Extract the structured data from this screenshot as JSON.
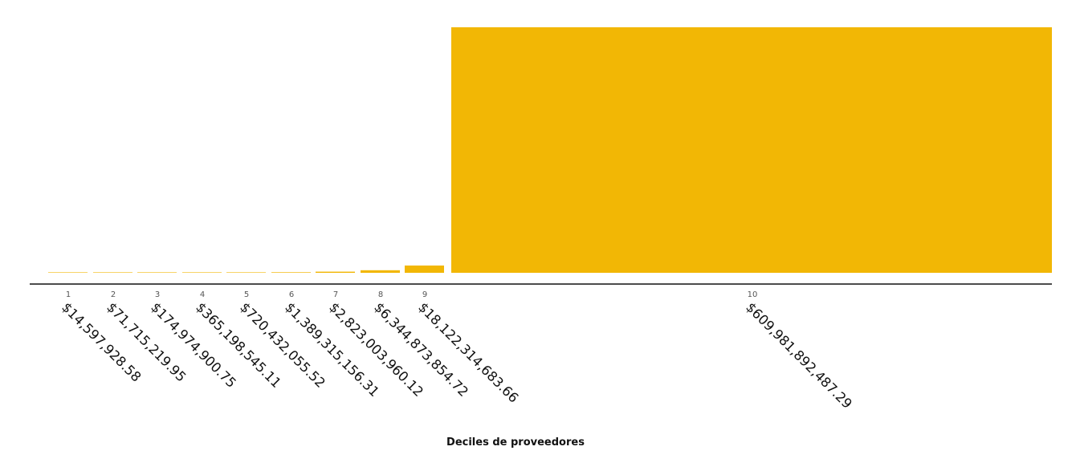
{
  "chart_data": {
    "type": "bar",
    "categories": [
      "1",
      "2",
      "3",
      "4",
      "5",
      "6",
      "7",
      "8",
      "9",
      "10"
    ],
    "values": [
      14597928.58,
      71715219.95,
      174974900.75,
      365198545.11,
      720432055.52,
      1389315156.31,
      2823003960.12,
      6344873854.72,
      18122314683.66,
      609981892487.29
    ],
    "value_labels": [
      "$14,597,928.58",
      "$71,715,219.95",
      "$174,974,900.75",
      "$365,198,545.11",
      "$720,432,055.52",
      "$1,389,315,156.31",
      "$2,823,003,960.12",
      "$6,344,873,854.72",
      "$18,122,314,683.66",
      "$609,981,892,487.29"
    ],
    "xlabel": "Deciles de proveedores",
    "ylabel": "",
    "grid": false,
    "bar_color": "#f2b705",
    "axis_color": "#111111"
  }
}
